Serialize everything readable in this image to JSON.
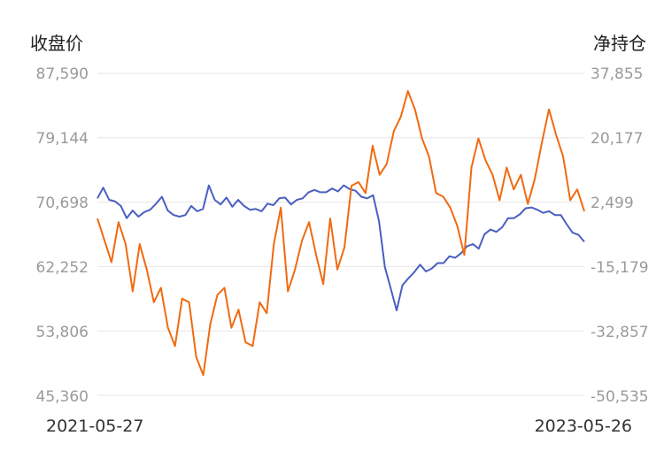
{
  "chart_data": {
    "type": "line",
    "left_axis": {
      "title": "收盘价",
      "ticks": [
        "87,590",
        "79,144",
        "70,698",
        "62,252",
        "53,806",
        "45,360"
      ],
      "range": [
        45360,
        87590
      ]
    },
    "right_axis": {
      "title": "净持仓",
      "ticks": [
        "37,855",
        "20,177",
        "2,499",
        "-15,179",
        "-32,857",
        "-50,535"
      ],
      "range": [
        -50535,
        37855
      ]
    },
    "x_labels": [
      "2021-05-27",
      "2023-05-26"
    ],
    "grid": true,
    "series": [
      {
        "axis": "left",
        "color": "#4a5fc1",
        "values": [
          71200,
          72600,
          71000,
          70800,
          70200,
          68600,
          69600,
          68800,
          69400,
          69700,
          70500,
          71400,
          69600,
          69000,
          68800,
          69000,
          70200,
          69500,
          69800,
          72900,
          71000,
          70400,
          71300,
          70100,
          71000,
          70200,
          69700,
          69800,
          69500,
          70500,
          70300,
          71200,
          71300,
          70400,
          71000,
          71200,
          72000,
          72300,
          72000,
          72000,
          72500,
          72100,
          72900,
          72400,
          72200,
          71400,
          71200,
          71600,
          68200,
          62200,
          59400,
          56500,
          59800,
          60700,
          61500,
          62500,
          61600,
          62000,
          62700,
          62700,
          63600,
          63400,
          64000,
          64900,
          65200,
          64600,
          66500,
          67100,
          66800,
          67400,
          68600,
          68600,
          69100,
          69900,
          70000,
          69700,
          69300,
          69500,
          69000,
          69000,
          67800,
          66700,
          66400,
          65500
        ]
      },
      {
        "axis": "right",
        "color": "#f06a10",
        "values": [
          -2000,
          -8000,
          -14000,
          -3000,
          -9000,
          -22000,
          -9000,
          -16000,
          -25000,
          -21000,
          -32000,
          -37000,
          -24000,
          -25000,
          -40000,
          -45000,
          -31000,
          -23000,
          -21000,
          -32000,
          -27000,
          -36000,
          -37000,
          -25000,
          -28000,
          -9000,
          1000,
          -22000,
          -16000,
          -8000,
          -3000,
          -12000,
          -20000,
          -2000,
          -16000,
          -10000,
          7000,
          8000,
          5000,
          18000,
          10000,
          13000,
          22000,
          26000,
          33000,
          28000,
          20000,
          15000,
          5000,
          4000,
          1000,
          -4000,
          -12000,
          12000,
          20000,
          14000,
          10000,
          3000,
          12000,
          6000,
          10000,
          2000,
          9000,
          19000,
          28000,
          21000,
          15000,
          3000,
          6000,
          0
        ]
      }
    ]
  }
}
